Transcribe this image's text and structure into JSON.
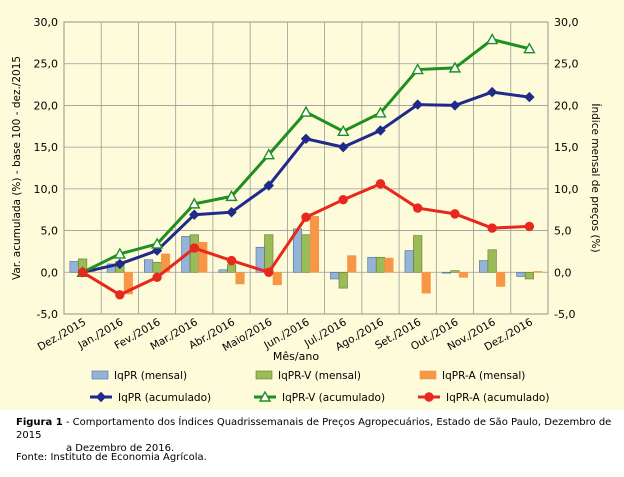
{
  "chart_data": {
    "type": "bar",
    "xlabel": "Mês/ano",
    "ylabel_left": "Var. acumulada (%) - base 100 - dez./2015",
    "ylabel_right": "Índice mensal de preços (%)",
    "ylim": [
      -5.0,
      30.0
    ],
    "yticks": [
      "-5,0",
      "0,0",
      "5,0",
      "10,0",
      "15,0",
      "20,0",
      "25,0",
      "30,0"
    ],
    "ytick_values": [
      -5,
      0,
      5,
      10,
      15,
      20,
      25,
      30
    ],
    "grid": true,
    "legend_position": "bottom",
    "categories": [
      "Dez./2015",
      "Jan./2016",
      "Fev./2016",
      "Mar./2016",
      "Abr./2016",
      "Maio/2016",
      "Jun./2016",
      "Jul./2016",
      "Ago./2016",
      "Set./2016",
      "Out./2016",
      "Nov./2016",
      "Dez./2016"
    ],
    "bar_series": [
      {
        "name": "IqPR (mensal)",
        "color": "#95b3d7",
        "edge": "#4a6f9c",
        "values": [
          1.3,
          1.0,
          1.5,
          4.3,
          0.3,
          3.0,
          5.2,
          -0.8,
          1.8,
          2.6,
          -0.1,
          1.4,
          -0.5
        ]
      },
      {
        "name": "IqPR-V (mensal)",
        "color": "#9bbb59",
        "edge": "#5f7a2a",
        "values": [
          1.6,
          1.3,
          1.2,
          4.5,
          0.9,
          4.5,
          4.5,
          -1.9,
          1.8,
          4.4,
          0.2,
          2.7,
          -0.8
        ]
      },
      {
        "name": "IqPR-A (mensal)",
        "color": "#f79646",
        "edge": "#f79646",
        "values": [
          0.1,
          -2.6,
          2.2,
          3.6,
          -1.4,
          -1.5,
          6.7,
          2.0,
          1.7,
          -2.5,
          -0.6,
          -1.7,
          0.1
        ]
      }
    ],
    "line_series": [
      {
        "name": "IqPR (acumulado)",
        "color": "#1f2a8a",
        "marker": "diamond",
        "values": [
          0.0,
          1.0,
          2.6,
          6.9,
          7.2,
          10.4,
          16.0,
          15.0,
          17.0,
          20.1,
          20.0,
          21.6,
          21.0
        ]
      },
      {
        "name": "IqPR-V (acumulado)",
        "color": "#1f8f1f",
        "marker": "triangle",
        "values": [
          0.0,
          2.2,
          3.4,
          8.2,
          9.1,
          14.1,
          19.2,
          16.9,
          19.1,
          24.3,
          24.5,
          27.9,
          26.8
        ]
      },
      {
        "name": "IqPR-A (acumulado)",
        "color": "#e8281c",
        "marker": "circle",
        "values": [
          0.0,
          -2.7,
          -0.6,
          2.9,
          1.4,
          0.0,
          6.6,
          8.7,
          10.6,
          7.7,
          7.0,
          5.3,
          5.5
        ]
      }
    ],
    "plot_background": "#fdfbd9"
  },
  "caption": {
    "label": "Figura 1",
    "line1": " - Comportamento dos Índices Quadrissemanais de Preços Agropecuários, Estado de São Paulo, Dezembro de 2015",
    "line2": "a Dezembro de 2016."
  },
  "source": "Fonte: Instituto de Economia Agrícola."
}
